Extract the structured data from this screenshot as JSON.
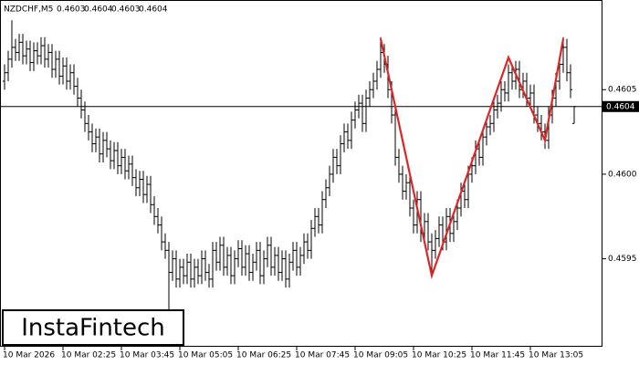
{
  "chart_data": {
    "type": "ohlc",
    "symbol": "NZDCHF,M5",
    "watermark": "InstaFintech",
    "ylim": [
      0.45898,
      0.46103
    ],
    "yticks": [
      0.4595,
      {
        "value": 0.46,
        "label": "0.4600"
      },
      0.4605
    ],
    "xticks": [
      {
        "value": 0,
        "label": "10 Mar 2026"
      },
      {
        "value": 16,
        "label": "10 Mar 02:25"
      },
      {
        "value": 32,
        "label": "10 Mar 03:45"
      },
      {
        "value": 48,
        "label": "10 Mar 05:05"
      },
      {
        "value": 64,
        "label": "10 Mar 06:25"
      },
      {
        "value": 80,
        "label": "10 Mar 07:45"
      },
      {
        "value": 96,
        "label": "10 Mar 09:05"
      },
      {
        "value": 112,
        "label": "10 Mar 10:25"
      },
      {
        "value": 128,
        "label": "10 Mar 11:45"
      },
      {
        "value": 144,
        "label": "10 Mar 13:05"
      }
    ],
    "color": "#000000",
    "open": [
      0.46055,
      0.4606,
      0.46068,
      0.46075,
      0.46072,
      0.46078,
      0.4607,
      0.46074,
      0.46066,
      0.46073,
      0.4607,
      0.46076,
      0.46068,
      0.46072,
      0.46062,
      0.46068,
      0.46058,
      0.46064,
      0.46055,
      0.4606,
      0.46052,
      0.46045,
      0.46038,
      0.4603,
      0.46025,
      0.46018,
      0.46022,
      0.46012,
      0.4602,
      0.46015,
      0.46008,
      0.46014,
      0.46005,
      0.4601,
      0.46002,
      0.46006,
      0.45998,
      0.45992,
      0.45997,
      0.45988,
      0.45994,
      0.45982,
      0.45975,
      0.4597,
      0.4596,
      0.45955,
      0.45942,
      0.4595,
      0.45938,
      0.45945,
      0.4594,
      0.45948,
      0.45938,
      0.45945,
      0.4594,
      0.4595,
      0.45942,
      0.45938,
      0.45955,
      0.45948,
      0.45958,
      0.45945,
      0.45952,
      0.4594,
      0.4595,
      0.45956,
      0.45945,
      0.45953,
      0.45942,
      0.45948,
      0.45955,
      0.4594,
      0.4595,
      0.45958,
      0.45945,
      0.45952,
      0.45942,
      0.4595,
      0.45938,
      0.45948,
      0.45955,
      0.45945,
      0.45952,
      0.4596,
      0.45955,
      0.45968,
      0.45975,
      0.4597,
      0.45985,
      0.45992,
      0.46,
      0.4601,
      0.46005,
      0.46018,
      0.46025,
      0.4602,
      0.46032,
      0.46038,
      0.46042,
      0.4603,
      0.46045,
      0.4605,
      0.46055,
      0.46062,
      0.46072,
      0.46065,
      0.4605,
      0.46035,
      0.4601,
      0.46,
      0.4599,
      0.45995,
      0.4598,
      0.4597,
      0.45985,
      0.45965,
      0.45972,
      0.4596,
      0.45955,
      0.45962,
      0.4597,
      0.4596,
      0.45975,
      0.45965,
      0.45972,
      0.4598,
      0.4599,
      0.45985,
      0.46,
      0.46005,
      0.46015,
      0.4601,
      0.46022,
      0.46028,
      0.4603,
      0.46038,
      0.46042,
      0.4605,
      0.46048,
      0.4606,
      0.46055,
      0.46062,
      0.4605,
      0.46055,
      0.46045,
      0.46048,
      0.46035,
      0.4603,
      0.46025,
      0.4602,
      0.46035,
      0.46045,
      0.46055,
      0.46065,
      0.46075,
      0.4606,
      0.4603
    ],
    "high": [
      0.46065,
      0.46073,
      0.46091,
      0.4608,
      0.46083,
      0.46083,
      0.46079,
      0.46079,
      0.46078,
      0.46078,
      0.46081,
      0.46081,
      0.46077,
      0.46077,
      0.46073,
      0.46073,
      0.46069,
      0.46069,
      0.46065,
      0.46065,
      0.46057,
      0.4605,
      0.46043,
      0.46035,
      0.4603,
      0.46027,
      0.46027,
      0.46025,
      0.46025,
      0.4602,
      0.46019,
      0.46019,
      0.46015,
      0.46015,
      0.46011,
      0.46011,
      0.46003,
      0.46002,
      0.46002,
      0.45999,
      0.45999,
      0.45987,
      0.4598,
      0.45975,
      0.45965,
      0.4596,
      0.45955,
      0.45955,
      0.4595,
      0.4595,
      0.45953,
      0.45953,
      0.4595,
      0.4595,
      0.45955,
      0.45955,
      0.45947,
      0.4596,
      0.4596,
      0.45963,
      0.45963,
      0.45957,
      0.45957,
      0.45955,
      0.45961,
      0.45961,
      0.45958,
      0.45958,
      0.45953,
      0.4596,
      0.4596,
      0.45955,
      0.45963,
      0.45963,
      0.45957,
      0.45957,
      0.45955,
      0.45955,
      0.45953,
      0.4596,
      0.4596,
      0.45957,
      0.45965,
      0.45965,
      0.45973,
      0.4598,
      0.4598,
      0.4599,
      0.45997,
      0.46005,
      0.46015,
      0.46015,
      0.46023,
      0.4603,
      0.4603,
      0.46037,
      0.46043,
      0.46047,
      0.46047,
      0.4605,
      0.46055,
      0.4606,
      0.46067,
      0.46081,
      0.46077,
      0.4607,
      0.46055,
      0.4604,
      0.46015,
      0.46005,
      0.46,
      0.46,
      0.45985,
      0.4599,
      0.4599,
      0.45977,
      0.45977,
      0.45965,
      0.45967,
      0.45975,
      0.45975,
      0.4598,
      0.4598,
      0.45977,
      0.45985,
      0.45995,
      0.45995,
      0.46005,
      0.4601,
      0.4602,
      0.4602,
      0.46027,
      0.46033,
      0.46035,
      0.46043,
      0.46047,
      0.46055,
      0.46055,
      0.46065,
      0.46065,
      0.46067,
      0.46067,
      0.4606,
      0.4606,
      0.46053,
      0.46053,
      0.4604,
      0.46035,
      0.4603,
      0.4604,
      0.4605,
      0.4606,
      0.4607,
      0.46081,
      0.4608,
      0.46065,
      0.4604
    ],
    "low": [
      0.4605,
      0.46055,
      0.46063,
      0.46067,
      0.46067,
      0.46065,
      0.46065,
      0.46061,
      0.46061,
      0.46065,
      0.46065,
      0.46063,
      0.46063,
      0.46057,
      0.46057,
      0.46053,
      0.46053,
      0.4605,
      0.4605,
      0.46047,
      0.4604,
      0.46033,
      0.46025,
      0.4602,
      0.46013,
      0.46013,
      0.46007,
      0.46007,
      0.4601,
      0.46003,
      0.46003,
      0.46,
      0.46,
      0.45997,
      0.45997,
      0.45993,
      0.45987,
      0.45987,
      0.45983,
      0.45983,
      0.45977,
      0.4597,
      0.45965,
      0.45955,
      0.4595,
      0.45919,
      0.45937,
      0.45933,
      0.45933,
      0.45935,
      0.45935,
      0.45933,
      0.45933,
      0.45935,
      0.45935,
      0.45937,
      0.45933,
      0.45933,
      0.45943,
      0.45943,
      0.4594,
      0.4594,
      0.45935,
      0.45935,
      0.45945,
      0.4594,
      0.4594,
      0.45937,
      0.45937,
      0.45943,
      0.45935,
      0.45935,
      0.45945,
      0.4594,
      0.4594,
      0.45937,
      0.45937,
      0.45933,
      0.45933,
      0.45943,
      0.4594,
      0.4594,
      0.45947,
      0.4595,
      0.4595,
      0.45963,
      0.45965,
      0.45965,
      0.4598,
      0.45987,
      0.45995,
      0.46,
      0.46,
      0.46013,
      0.46015,
      0.46015,
      0.46027,
      0.46033,
      0.46025,
      0.46025,
      0.4604,
      0.46045,
      0.4605,
      0.46057,
      0.4606,
      0.46045,
      0.4603,
      0.46005,
      0.45995,
      0.45985,
      0.45985,
      0.45975,
      0.45965,
      0.45965,
      0.4596,
      0.4596,
      0.45955,
      0.4594,
      0.4595,
      0.45957,
      0.45955,
      0.45955,
      0.4596,
      0.4596,
      0.45967,
      0.45975,
      0.4598,
      0.4598,
      0.45995,
      0.46,
      0.46005,
      0.46005,
      0.46017,
      0.46023,
      0.46025,
      0.46033,
      0.46037,
      0.46043,
      0.46043,
      0.4605,
      0.4605,
      0.46045,
      0.46045,
      0.4604,
      0.4604,
      0.4603,
      0.46025,
      0.4602,
      0.46015,
      0.46015,
      0.4603,
      0.4604,
      0.4605,
      0.4606,
      0.46055,
      0.46045,
      0.4603
    ],
    "close": [
      0.4606,
      0.46068,
      0.46075,
      0.46072,
      0.46078,
      0.4607,
      0.46074,
      0.46066,
      0.46073,
      0.4607,
      0.46076,
      0.46068,
      0.46072,
      0.46062,
      0.46068,
      0.46058,
      0.46064,
      0.46055,
      0.4606,
      0.46052,
      0.46045,
      0.46038,
      0.4603,
      0.46025,
      0.46018,
      0.46022,
      0.46012,
      0.4602,
      0.46015,
      0.46008,
      0.46014,
      0.46005,
      0.4601,
      0.46002,
      0.46006,
      0.45998,
      0.45992,
      0.45997,
      0.45988,
      0.45994,
      0.45982,
      0.45975,
      0.4597,
      0.4596,
      0.45955,
      0.45942,
      0.4595,
      0.45938,
      0.45945,
      0.4594,
      0.45948,
      0.45938,
      0.45945,
      0.4594,
      0.4595,
      0.45942,
      0.45938,
      0.45955,
      0.45948,
      0.45958,
      0.45945,
      0.45952,
      0.4594,
      0.4595,
      0.45956,
      0.45945,
      0.45953,
      0.45942,
      0.45948,
      0.45955,
      0.4594,
      0.4595,
      0.45958,
      0.45945,
      0.45952,
      0.45942,
      0.4595,
      0.45938,
      0.45948,
      0.45955,
      0.45945,
      0.45952,
      0.4596,
      0.45955,
      0.45968,
      0.45975,
      0.4597,
      0.45985,
      0.45992,
      0.46,
      0.4601,
      0.46005,
      0.46018,
      0.46025,
      0.4602,
      0.46032,
      0.46038,
      0.46042,
      0.4603,
      0.46045,
      0.4605,
      0.46055,
      0.46062,
      0.46072,
      0.46065,
      0.4605,
      0.46035,
      0.4601,
      0.46,
      0.4599,
      0.45995,
      0.4598,
      0.4597,
      0.45985,
      0.45965,
      0.45972,
      0.4596,
      0.45955,
      0.45962,
      0.4597,
      0.4596,
      0.45975,
      0.45965,
      0.45972,
      0.4598,
      0.4599,
      0.45985,
      0.46,
      0.46005,
      0.46015,
      0.4601,
      0.46022,
      0.46028,
      0.4603,
      0.46038,
      0.46042,
      0.4605,
      0.46048,
      0.4606,
      0.46055,
      0.46062,
      0.4605,
      0.46055,
      0.46045,
      0.46048,
      0.46035,
      0.4603,
      0.46025,
      0.4602,
      0.46035,
      0.46045,
      0.46055,
      0.46065,
      0.46075,
      0.4606,
      0.4605,
      0.4604
    ],
    "pattern": {
      "color": "#e02424",
      "x": [
        103,
        117,
        138,
        148,
        153
      ],
      "values": [
        0.4608,
        0.4594,
        0.46069,
        0.4602,
        0.4608
      ]
    }
  }
}
